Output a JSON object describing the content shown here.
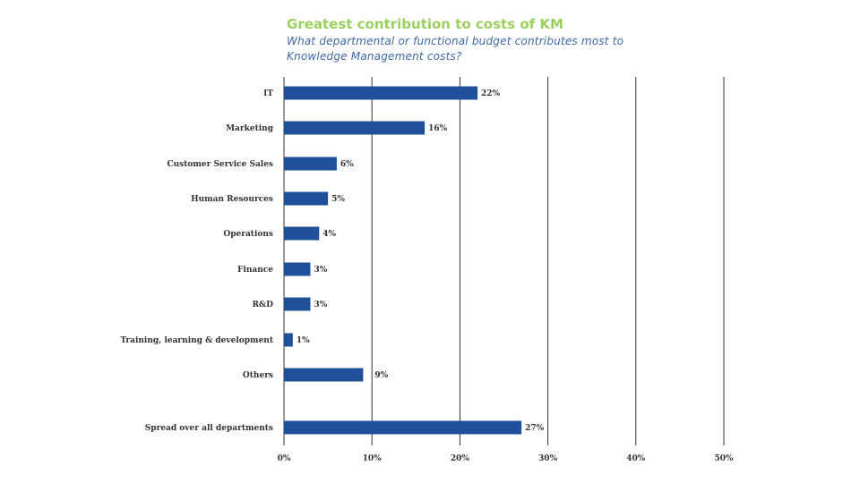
{
  "chart_data": {
    "type": "bar",
    "orientation": "horizontal",
    "title": "Greatest contribution to costs of KM",
    "subtitle": "What departmental or functional budget contributes most to Knowledge Management costs?",
    "categories": [
      "IT",
      "Marketing",
      "Customer Service Sales",
      "Human Resources",
      "Operations",
      "Finance",
      "R&D",
      "Training, learning & development",
      "Others",
      "Spread over all departments"
    ],
    "values": [
      22,
      16,
      6,
      5,
      4,
      3,
      3,
      1,
      9,
      27
    ],
    "value_labels": [
      "22%",
      "16%",
      "6%",
      "5%",
      "4%",
      "3%",
      "3%",
      "1%",
      "9%",
      "27%"
    ],
    "xlim": [
      0,
      50
    ],
    "xticks": [
      0,
      10,
      20,
      30,
      40,
      50
    ],
    "xtick_labels": [
      "0%",
      "10%",
      "20%",
      "30%",
      "40%",
      "50%"
    ],
    "grid": true,
    "legend": "none",
    "colors": {
      "bar": "#21509a",
      "title": "#9bcf5f",
      "subtitle": "#3e67a8",
      "grid": "#333333"
    }
  }
}
